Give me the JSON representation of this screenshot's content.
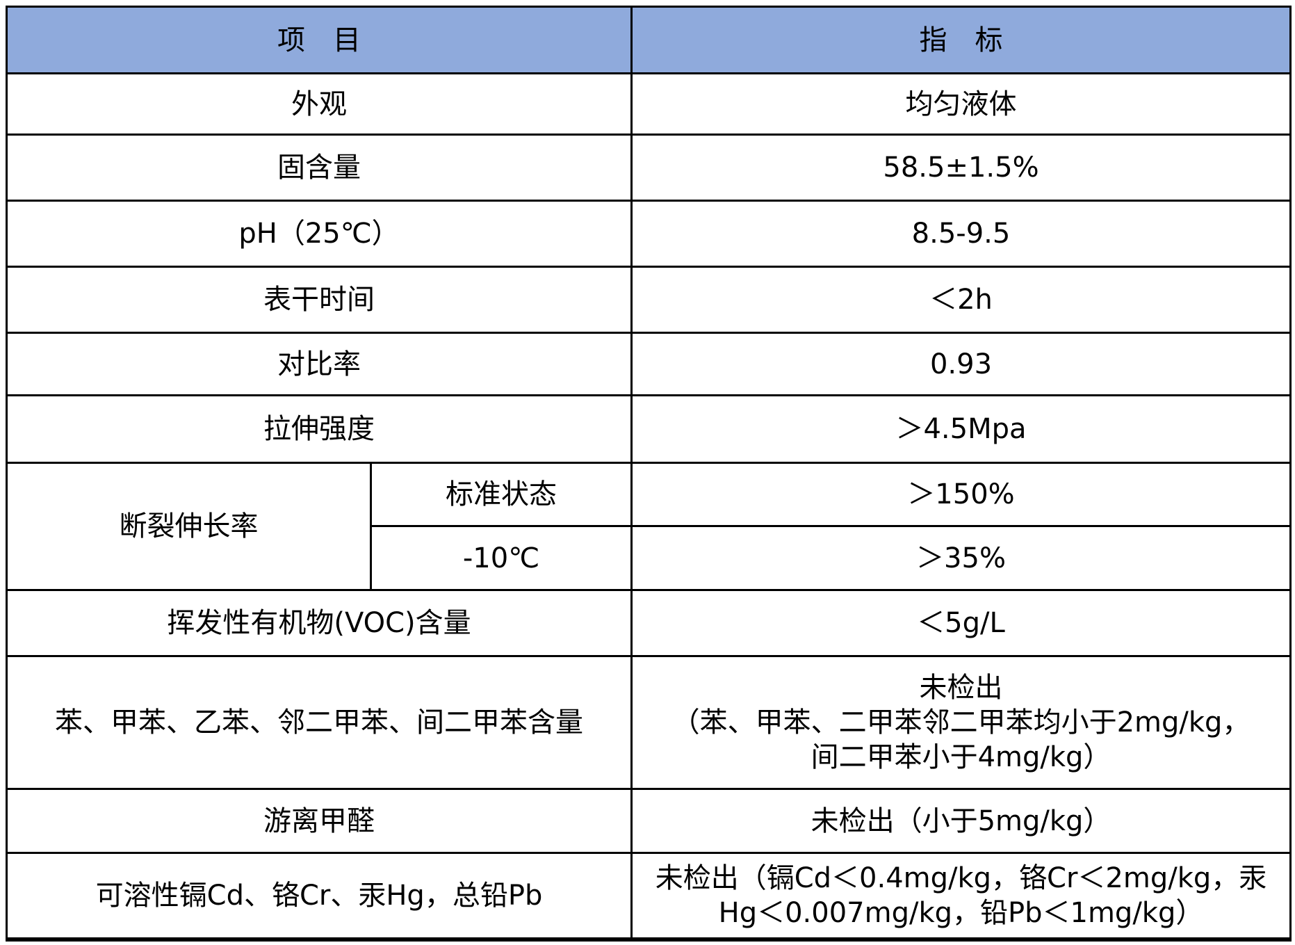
{
  "colors": {
    "header_bg": "#8FAADC",
    "border": "#000000",
    "text": "#000000"
  },
  "header": {
    "item": "项　目",
    "spec": "指　标"
  },
  "rows_top": [
    {
      "item": "外观",
      "spec": "均匀液体"
    },
    {
      "item": "固含量",
      "spec": "58.5±1.5%"
    },
    {
      "item": "pH（25℃）",
      "spec": "8.5-9.5"
    },
    {
      "item": "表干时间",
      "spec": "＜2h"
    },
    {
      "item": "对比率",
      "spec": "0.93"
    },
    {
      "item": "拉伸强度",
      "spec": "＞4.5Mpa"
    }
  ],
  "elongation": {
    "item": "断裂伸长率",
    "sub_rows": [
      {
        "condition": "标准状态",
        "spec": "＞150%"
      },
      {
        "condition": "-10℃",
        "spec": "＞35%"
      }
    ]
  },
  "rows_bottom": [
    {
      "item": "挥发性有机物(VOC)含量",
      "spec": "＜5g/L"
    },
    {
      "item": "苯、甲苯、乙苯、邻二甲苯、间二甲苯含量",
      "spec": "未检出\n（苯、甲苯、二甲苯邻二甲苯均小于2mg/kg，\n间二甲苯小于4mg/kg）"
    },
    {
      "item": "游离甲醛",
      "spec": "未检出（小于5mg/kg）"
    },
    {
      "item": "可溶性镉Cd、铬Cr、汞Hg，总铅Pb",
      "spec": "未检出（镉Cd＜0.4mg/kg，铬Cr＜2mg/kg，汞\nHg＜0.007mg/kg，铅Pb＜1mg/kg）"
    }
  ]
}
